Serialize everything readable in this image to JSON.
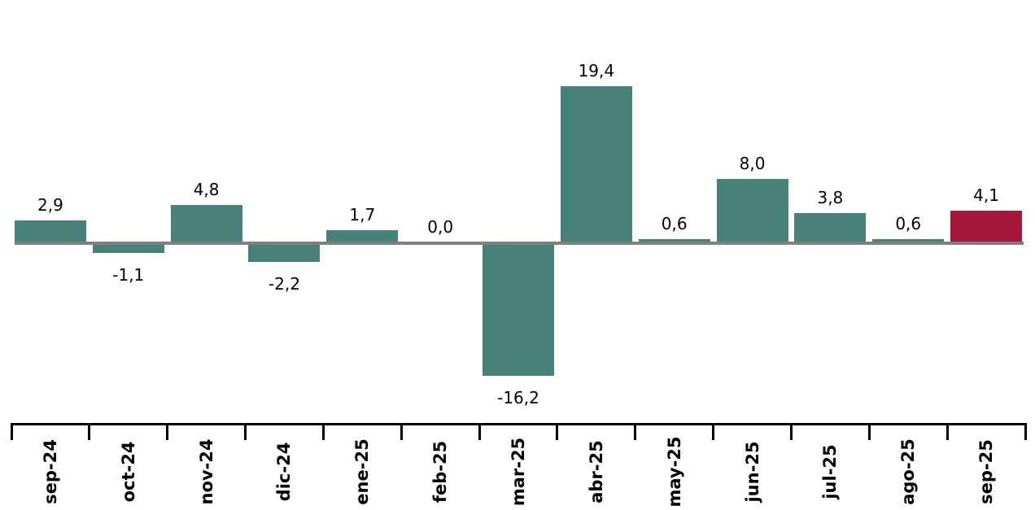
{
  "chart_data": {
    "type": "bar",
    "categories": [
      "sep-24",
      "oct-24",
      "nov-24",
      "dic-24",
      "ene-25",
      "feb-25",
      "mar-25",
      "abr-25",
      "may-25",
      "jun-25",
      "jul-25",
      "ago-25",
      "sep-25"
    ],
    "values": [
      2.9,
      -1.1,
      4.8,
      -2.2,
      1.7,
      0.0,
      -16.2,
      19.4,
      0.6,
      8.0,
      3.8,
      0.6,
      4.1
    ],
    "value_labels": [
      "2,9",
      "-1,1",
      "4,8",
      "-2,2",
      "1,7",
      "0,0",
      "-16,2",
      "19,4",
      "0,6",
      "8,0",
      "3,8",
      "0,6",
      "4,1"
    ],
    "decimal_separator": ",",
    "ylim": [
      -22,
      30
    ],
    "grid": false,
    "legend": false,
    "y_axis_visible": false,
    "zero_line_visible": true,
    "colors": {
      "bar_default": "#48817A",
      "bar_highlight": "#A5173A",
      "highlight_index": 12,
      "zero_line": "#808080",
      "category_axis": "#000000",
      "label_text": "#000000",
      "background": "#FFFFFF"
    }
  }
}
